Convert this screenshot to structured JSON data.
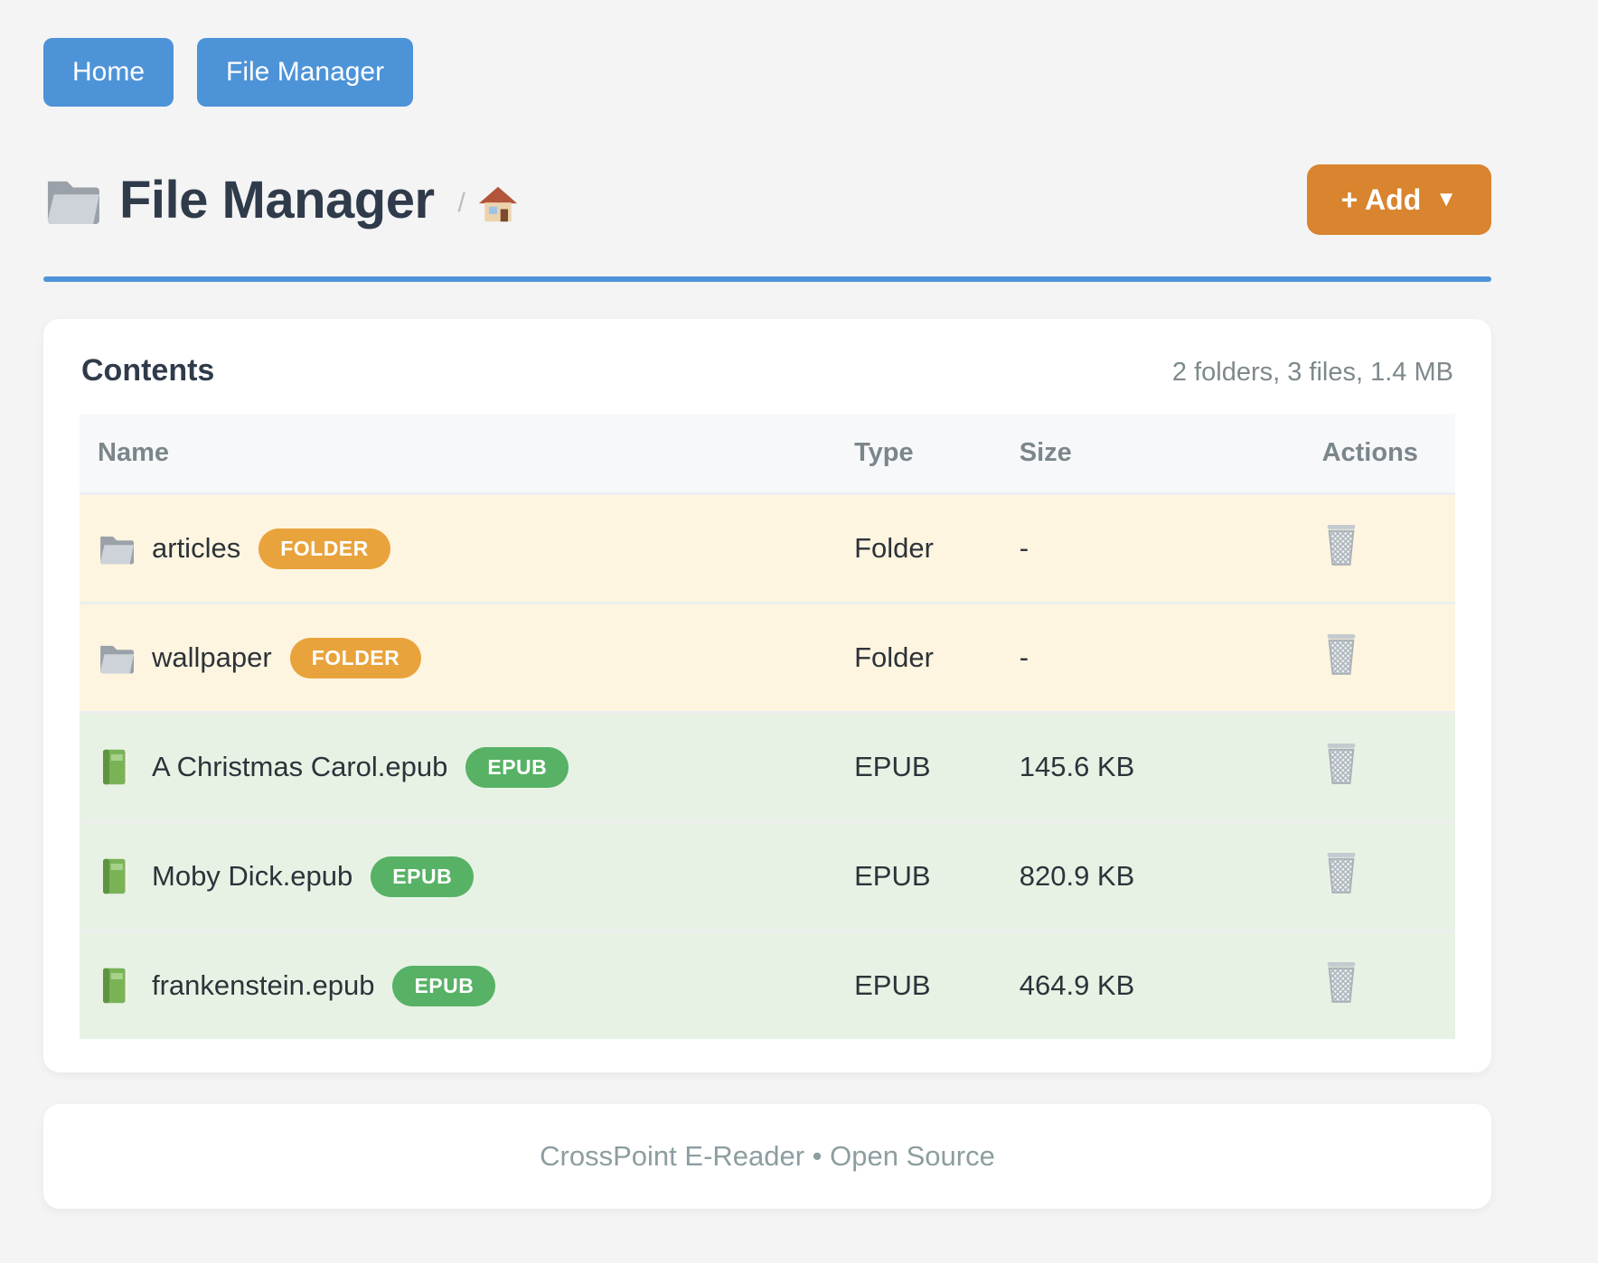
{
  "nav": {
    "home_label": "Home",
    "file_manager_label": "File Manager"
  },
  "header": {
    "title": "File Manager",
    "title_icon": "folder-icon",
    "breadcrumb_separator": "/",
    "breadcrumb_home_icon": "house-icon",
    "add_label": "+ Add",
    "add_caret": "▼"
  },
  "contents": {
    "title": "Contents",
    "summary": "2 folders, 3 files, 1.4 MB",
    "table": {
      "columns": [
        "Name",
        "Type",
        "Size",
        "Actions"
      ],
      "action_icon": "trash-icon",
      "rows": [
        {
          "name": "articles",
          "kind": "folder",
          "icon": "folder-icon",
          "badge": "FOLDER",
          "type": "Folder",
          "size": "-"
        },
        {
          "name": "wallpaper",
          "kind": "folder",
          "icon": "folder-icon",
          "badge": "FOLDER",
          "type": "Folder",
          "size": "-"
        },
        {
          "name": "A Christmas Carol.epub",
          "kind": "epub",
          "icon": "book-icon",
          "badge": "EPUB",
          "type": "EPUB",
          "size": "145.6 KB"
        },
        {
          "name": "Moby Dick.epub",
          "kind": "epub",
          "icon": "book-icon",
          "badge": "EPUB",
          "type": "EPUB",
          "size": "820.9 KB"
        },
        {
          "name": "frankenstein.epub",
          "kind": "epub",
          "icon": "book-icon",
          "badge": "EPUB",
          "type": "EPUB",
          "size": "464.9 KB"
        }
      ]
    }
  },
  "footer": {
    "text": "CrossPoint E-Reader • Open Source"
  },
  "colors": {
    "page_background": "#f4f4f5",
    "accent_blue": "#4d93d8",
    "accent_orange": "#d9842e",
    "badge_folder": "#e9a33c",
    "badge_epub": "#57b265",
    "row_folder_bg": "#fdf5e0",
    "row_epub_bg": "#e7f2e5"
  }
}
